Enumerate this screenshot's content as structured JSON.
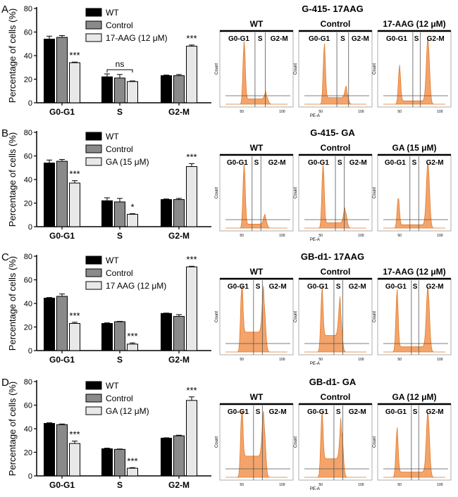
{
  "figure": {
    "y_axis_label": "Percentage of cells (%)",
    "flow_axis_count": "Count",
    "flow_axis_pe": "PE-A",
    "flow_gates": [
      "G0-G1",
      "S",
      "G2-M"
    ]
  },
  "colors": {
    "wt": "#000000",
    "control": "#8a8a8a",
    "treated": "#e8e8e8",
    "histogram_fill": "#f4a46a",
    "histogram_stroke": "#e07a2a"
  },
  "panels": [
    {
      "letter": "A",
      "flow_title": "G-415- 17AAG",
      "flow_headers": [
        "WT",
        "Control",
        "17-AAG (12 μM)"
      ],
      "flow_tick_labels": [
        "50",
        "100"
      ],
      "chart_data": {
        "type": "bar",
        "title": "",
        "xlabel": "",
        "ylabel": "Percentage of cells (%)",
        "ylim": [
          0,
          80
        ],
        "yticks": [
          "0",
          "20",
          "40",
          "60",
          "80"
        ],
        "categories": [
          "G0-G1",
          "S",
          "G2-M"
        ],
        "series": [
          {
            "name": "WT",
            "values": [
              54,
              22,
              23
            ],
            "errors": [
              2.5,
              2.5,
              0.5
            ]
          },
          {
            "name": "Control",
            "values": [
              55.5,
              21,
              23
            ],
            "errors": [
              1.5,
              3,
              1
            ]
          },
          {
            "name": "17-AAG (12 μM)",
            "values": [
              34,
              18,
              48
            ],
            "errors": [
              0.5,
              0.5,
              1
            ]
          }
        ],
        "annotations": [
          {
            "category": 0,
            "series": 2,
            "text": "***"
          },
          {
            "category": 1,
            "text": "ns",
            "bracket": true
          },
          {
            "category": 2,
            "series": 2,
            "text": "***"
          }
        ]
      }
    },
    {
      "letter": "B",
      "flow_title": "G-415- GA",
      "flow_headers": [
        "WT",
        "Control",
        "GA  (15 μM)"
      ],
      "flow_tick_labels": [
        "50",
        "100"
      ],
      "chart_data": {
        "type": "bar",
        "title": "",
        "xlabel": "",
        "ylabel": "Percentage of cells (%)",
        "ylim": [
          0,
          80
        ],
        "yticks": [
          "0",
          "20",
          "40",
          "60",
          "80"
        ],
        "categories": [
          "G0-G1",
          "S",
          "G2-M"
        ],
        "series": [
          {
            "name": "WT",
            "values": [
              54,
              22,
              23
            ],
            "errors": [
              2.5,
              2.5,
              0.5
            ]
          },
          {
            "name": "Control",
            "values": [
              55.5,
              21,
              23
            ],
            "errors": [
              1.5,
              3,
              1
            ]
          },
          {
            "name": "GA (15 μM)",
            "values": [
              37,
              10.5,
              51
            ],
            "errors": [
              2,
              0.5,
              2.5
            ]
          }
        ],
        "annotations": [
          {
            "category": 0,
            "series": 2,
            "text": "***"
          },
          {
            "category": 1,
            "series": 2,
            "text": "*"
          },
          {
            "category": 2,
            "series": 2,
            "text": "***"
          }
        ]
      }
    },
    {
      "letter": "C",
      "flow_title": "GB-d1- 17AAG",
      "flow_headers": [
        "WT",
        "Control",
        "17-AAG (12 μM)"
      ],
      "flow_tick_labels": [
        "50",
        "100"
      ],
      "chart_data": {
        "type": "bar",
        "title": "",
        "xlabel": "",
        "ylabel": "Percentage of cells (%)",
        "ylim": [
          0,
          80
        ],
        "yticks": [
          "0",
          "20",
          "40",
          "60",
          "80"
        ],
        "categories": [
          "G0-G1",
          "S",
          "G2-M"
        ],
        "series": [
          {
            "name": "WT",
            "values": [
              44.5,
              23,
              31.5
            ],
            "errors": [
              0.5,
              0.5,
              0.3
            ]
          },
          {
            "name": "Control",
            "values": [
              46,
              24.5,
              29
            ],
            "errors": [
              2,
              0.3,
              1.5
            ]
          },
          {
            "name": "17 AAG (12 μM)",
            "values": [
              23,
              5.5,
              71
            ],
            "errors": [
              1,
              1,
              0.5
            ]
          }
        ],
        "annotations": [
          {
            "category": 0,
            "series": 2,
            "text": "***"
          },
          {
            "category": 1,
            "series": 2,
            "text": "***"
          },
          {
            "category": 2,
            "series": 2,
            "text": "***"
          }
        ]
      }
    },
    {
      "letter": "D",
      "flow_title": "GB-d1- GA",
      "flow_headers": [
        "WT",
        "Control",
        "GA  (12 μM)"
      ],
      "flow_tick_labels": [
        "50",
        "100"
      ],
      "chart_data": {
        "type": "bar",
        "title": "",
        "xlabel": "",
        "ylabel": "Percentage of cells (%)",
        "ylim": [
          0,
          80
        ],
        "yticks": [
          "0",
          "20",
          "40",
          "60",
          "80"
        ],
        "categories": [
          "G0-G1",
          "S",
          "G2-M"
        ],
        "series": [
          {
            "name": "WT",
            "values": [
              44.5,
              23,
              32
            ],
            "errors": [
              0.5,
              0.5,
              0.3
            ]
          },
          {
            "name": "Control",
            "values": [
              43.5,
              22.5,
              34
            ],
            "errors": [
              0.5,
              0.3,
              0.5
            ]
          },
          {
            "name": "GA  (12 μM)",
            "values": [
              27.5,
              6.5,
              64
            ],
            "errors": [
              2,
              0.5,
              3
            ]
          }
        ],
        "annotations": [
          {
            "category": 0,
            "series": 2,
            "text": "***"
          },
          {
            "category": 1,
            "series": 2,
            "text": "***"
          },
          {
            "category": 2,
            "series": 2,
            "text": "***"
          }
        ]
      }
    }
  ]
}
